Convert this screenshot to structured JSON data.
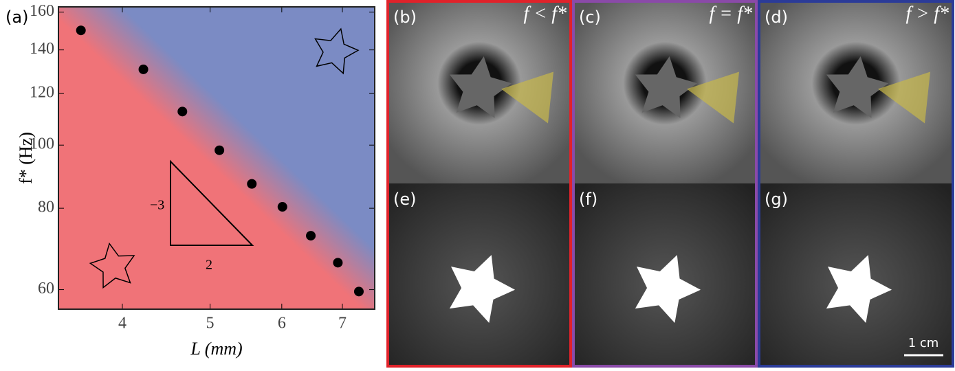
{
  "chart_data": {
    "type": "scatter",
    "panel_label": "(a)",
    "x_label": "L (mm)",
    "y_label": "f* (Hz)",
    "xscale": "log",
    "yscale": "log",
    "xlim": [
      3.4,
      7.6
    ],
    "ylim": [
      56,
      163
    ],
    "xticks": [
      4,
      5,
      6,
      7
    ],
    "yticks": [
      60,
      80,
      100,
      120,
      140,
      160
    ],
    "x": [
      3.6,
      4.22,
      4.66,
      5.12,
      5.56,
      6.01,
      6.46,
      6.92,
      7.3
    ],
    "values": [
      150,
      130.7,
      112.6,
      98.2,
      87.2,
      80.4,
      72.6,
      66.0,
      59.6
    ],
    "color": "#000000",
    "background_colors": [
      "#f07378",
      "#7b8bc4"
    ],
    "annotations": [
      "−3",
      "2"
    ]
  },
  "panels": [
    {
      "label": "(b)",
      "title": "f < f*",
      "border": "#e0222a"
    },
    {
      "label": "(c)",
      "title": "f = f*",
      "border": "#8a4aa8"
    },
    {
      "label": "(d)",
      "title": "f > f*",
      "border": "#2b3b98"
    },
    {
      "label": "(e)",
      "border": "#e0222a"
    },
    {
      "label": "(f)",
      "border": "#8a4aa8"
    },
    {
      "label": "(g)",
      "border": "#2b3b98"
    }
  ],
  "scale_bar": "1 cm"
}
